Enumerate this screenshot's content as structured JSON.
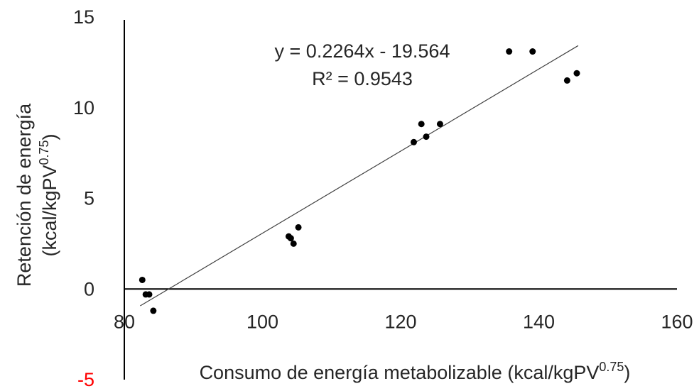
{
  "chart_data": {
    "type": "scatter",
    "xlabel": "Consumo de energía metabolizable (kcal/kgPV",
    "xlabel_sup": "0.75",
    "xlabel_end": ")",
    "ylabel_line1": "Retención de energía",
    "ylabel_line2": "(kcal/kgPV",
    "ylabel_sup": "0.75",
    "ylabel_end": ")",
    "xlim": [
      80,
      160
    ],
    "ylim": [
      -5,
      15
    ],
    "x_ticks": [
      80,
      100,
      120,
      140,
      160
    ],
    "y_ticks": [
      15,
      10,
      5,
      0,
      -5
    ],
    "y_tick_colors": {
      "-5": "#ff0000"
    },
    "grid": false,
    "marker_color": "#000000",
    "trendline": {
      "equation": "y = 0.2264x - 19.564",
      "r2_label": "R² = 0.9543",
      "slope": 0.2264,
      "intercept": -19.564,
      "x_range": [
        82.3,
        145.7
      ],
      "color": "#404040"
    },
    "points": [
      {
        "x": 82.6,
        "y": 0.5
      },
      {
        "x": 83.1,
        "y": -0.3
      },
      {
        "x": 83.6,
        "y": -0.3
      },
      {
        "x": 84.2,
        "y": -1.2
      },
      {
        "x": 103.8,
        "y": 2.9
      },
      {
        "x": 104.1,
        "y": 2.8
      },
      {
        "x": 104.5,
        "y": 2.5
      },
      {
        "x": 105.2,
        "y": 3.4
      },
      {
        "x": 121.9,
        "y": 8.1
      },
      {
        "x": 123.0,
        "y": 9.1
      },
      {
        "x": 123.7,
        "y": 8.4
      },
      {
        "x": 125.7,
        "y": 9.1
      },
      {
        "x": 135.7,
        "y": 13.1
      },
      {
        "x": 139.1,
        "y": 13.1
      },
      {
        "x": 144.1,
        "y": 11.5
      },
      {
        "x": 145.5,
        "y": 11.9
      }
    ]
  }
}
